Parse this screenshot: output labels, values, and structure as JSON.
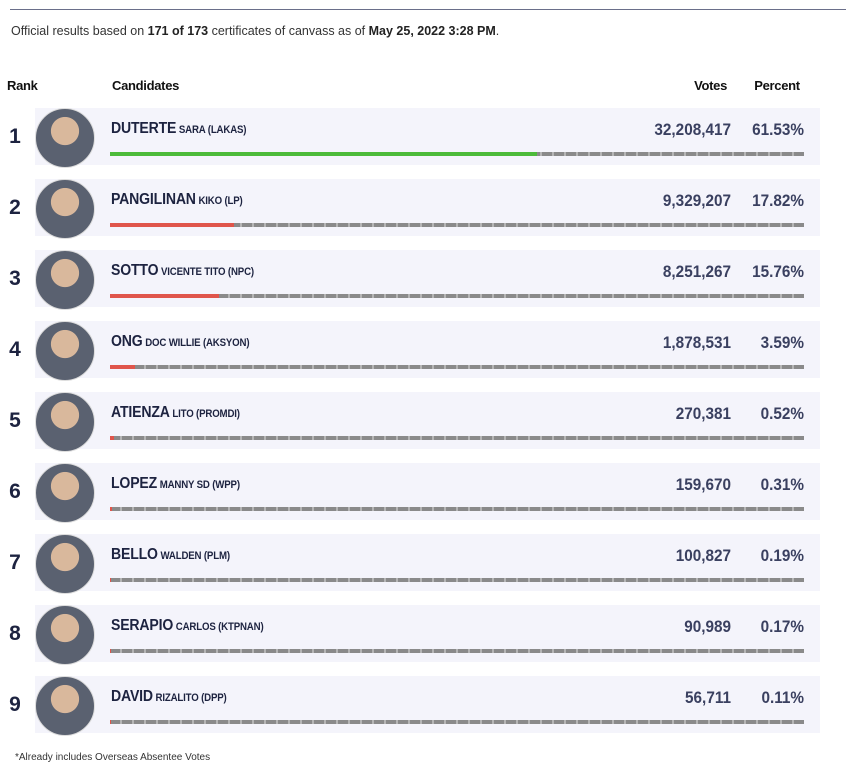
{
  "note": [
    "Official results based on ",
    "171 of 173",
    " certificates of canvass as of ",
    "May 25, 2022 3:28 PM",
    "."
  ],
  "columns": {
    "rank": "Rank",
    "candidates": "Candidates",
    "votes": "Votes",
    "percent": "Percent"
  },
  "rows": [
    {
      "rank": "1",
      "surname": "DUTERTE",
      "details": "SARA (LAKAS)",
      "votes": "32,208,417",
      "share": 61.53,
      "share_label": "61.53%",
      "bar_color": "#4cbb3a"
    },
    {
      "rank": "2",
      "surname": "PANGILINAN",
      "details": "KIKO (LP)",
      "votes": "9,329,207",
      "share": 17.82,
      "share_label": "17.82%",
      "bar_color": "#e0554b"
    },
    {
      "rank": "3",
      "surname": "SOTTO",
      "details": "VICENTE TITO (NPC)",
      "votes": "8,251,267",
      "share": 15.76,
      "share_label": "15.76%",
      "bar_color": "#e0554b"
    },
    {
      "rank": "4",
      "surname": "ONG",
      "details": "DOC WILLIE (AKSYON)",
      "votes": "1,878,531",
      "share": 3.59,
      "share_label": "3.59%",
      "bar_color": "#e0554b"
    },
    {
      "rank": "5",
      "surname": "ATIENZA",
      "details": "LITO (PROMDI)",
      "votes": "270,381",
      "share": 0.52,
      "share_label": "0.52%",
      "bar_color": "#e0554b"
    },
    {
      "rank": "6",
      "surname": "LOPEZ",
      "details": "MANNY SD (WPP)",
      "votes": "159,670",
      "share": 0.31,
      "share_label": "0.31%",
      "bar_color": "#e0554b"
    },
    {
      "rank": "7",
      "surname": "BELLO",
      "details": "WALDEN (PLM)",
      "votes": "100,827",
      "share": 0.19,
      "share_label": "0.19%",
      "bar_color": "#e0554b"
    },
    {
      "rank": "8",
      "surname": "SERAPIO",
      "details": "CARLOS (KTPNAN)",
      "votes": "90,989",
      "share": 0.17,
      "share_label": "0.17%",
      "bar_color": "#e0554b"
    },
    {
      "rank": "9",
      "surname": "DAVID",
      "details": "RIZALITO (DPP)",
      "votes": "56,711",
      "share": 0.11,
      "share_label": "0.11%",
      "bar_color": "#e0554b"
    }
  ],
  "footnote": "*Already includes Overseas Absentee Votes"
}
